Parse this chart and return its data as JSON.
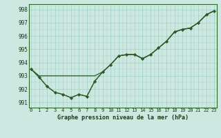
{
  "title": "Graphe pression niveau de la mer (hPa)",
  "background_color": "#cce8e0",
  "grid_color": "#9ecfc4",
  "line_color": "#2d5a27",
  "x_ticks": [
    0,
    1,
    2,
    3,
    4,
    5,
    6,
    7,
    8,
    9,
    10,
    11,
    12,
    13,
    14,
    15,
    16,
    17,
    18,
    19,
    20,
    21,
    22,
    23
  ],
  "y_ticks": [
    991,
    992,
    993,
    994,
    995,
    996,
    997,
    998
  ],
  "ylim": [
    990.6,
    998.4
  ],
  "xlim": [
    -0.3,
    23.3
  ],
  "line_main": [
    993.5,
    992.85,
    992.2,
    991.75,
    991.55,
    991.35,
    991.55,
    991.45,
    992.65,
    993.25,
    993.85,
    994.45,
    994.55,
    994.55,
    994.25,
    994.55,
    995.05,
    995.55,
    996.25,
    996.45,
    996.55,
    997.0,
    997.55,
    997.85
  ],
  "line_dotted": [
    993.5,
    992.85,
    992.2,
    991.75,
    991.55,
    991.35,
    991.55,
    991.45,
    992.65,
    993.25,
    993.85,
    994.45,
    994.55,
    994.55,
    994.25,
    994.55,
    995.05,
    995.55,
    996.25,
    996.45,
    996.55,
    997.0,
    997.55,
    997.85
  ],
  "line_straight": [
    993.5,
    993.5,
    993.5,
    993.5,
    993.5,
    993.5,
    993.5,
    993.5,
    993.5,
    993.5,
    993.85,
    994.45,
    994.55,
    994.55,
    994.25,
    994.55,
    995.05,
    995.55,
    996.25,
    996.45,
    996.55,
    997.0,
    997.55,
    997.85
  ],
  "line_low": [
    993.5,
    992.85,
    992.2,
    991.75,
    991.55,
    991.35,
    991.55,
    991.45,
    992.65,
    993.25,
    993.85,
    994.45,
    994.55,
    994.55,
    994.25,
    994.55,
    995.05,
    995.55,
    996.25,
    996.45,
    996.55,
    997.0,
    997.55,
    997.85
  ]
}
